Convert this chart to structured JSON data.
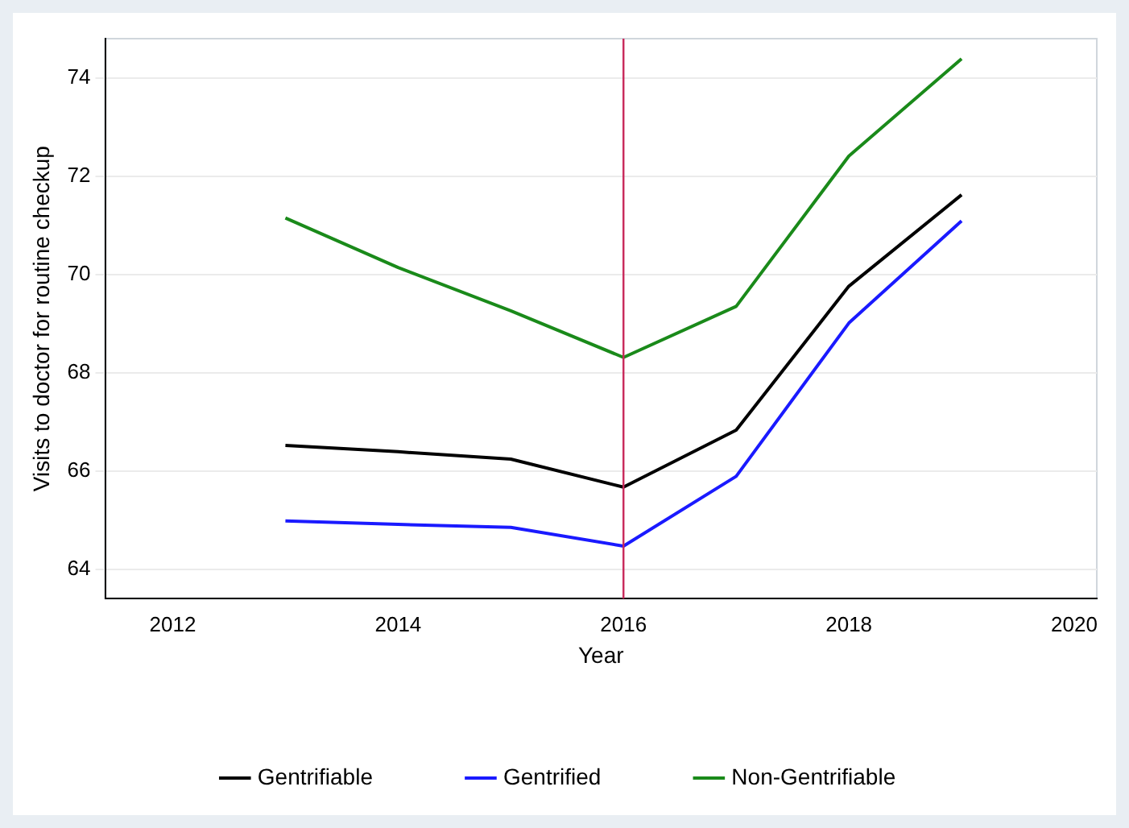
{
  "chart_data": {
    "type": "line",
    "xlabel": "Year",
    "ylabel": "Visits to doctor for routine checkup",
    "x": [
      2013,
      2014,
      2015,
      2016,
      2017,
      2018,
      2019
    ],
    "series": [
      {
        "name": "Gentrifiable",
        "color": "#000000",
        "values": [
          66.52,
          66.39,
          66.24,
          65.67,
          66.83,
          69.76,
          71.62
        ]
      },
      {
        "name": "Gentrified",
        "color": "#1a1aff",
        "values": [
          64.98,
          64.91,
          64.85,
          64.47,
          65.89,
          69.01,
          71.09
        ]
      },
      {
        "name": "Non-Gentrifiable",
        "color": "#1a8a1a",
        "values": [
          71.15,
          70.14,
          69.26,
          68.31,
          69.35,
          72.41,
          74.39
        ]
      }
    ],
    "xlim": [
      2011.4,
      2020.2
    ],
    "xticks": [
      2012,
      2014,
      2016,
      2018,
      2020
    ],
    "ylim": [
      63.4,
      74.8
    ],
    "yticks": [
      64,
      66,
      68,
      70,
      72,
      74
    ],
    "ref_lines": [
      {
        "axis": "x",
        "value": 2016,
        "color": "#c8285a"
      }
    ],
    "grid": "y",
    "legend": "bottom",
    "marker": "none",
    "line_style": "solid"
  }
}
